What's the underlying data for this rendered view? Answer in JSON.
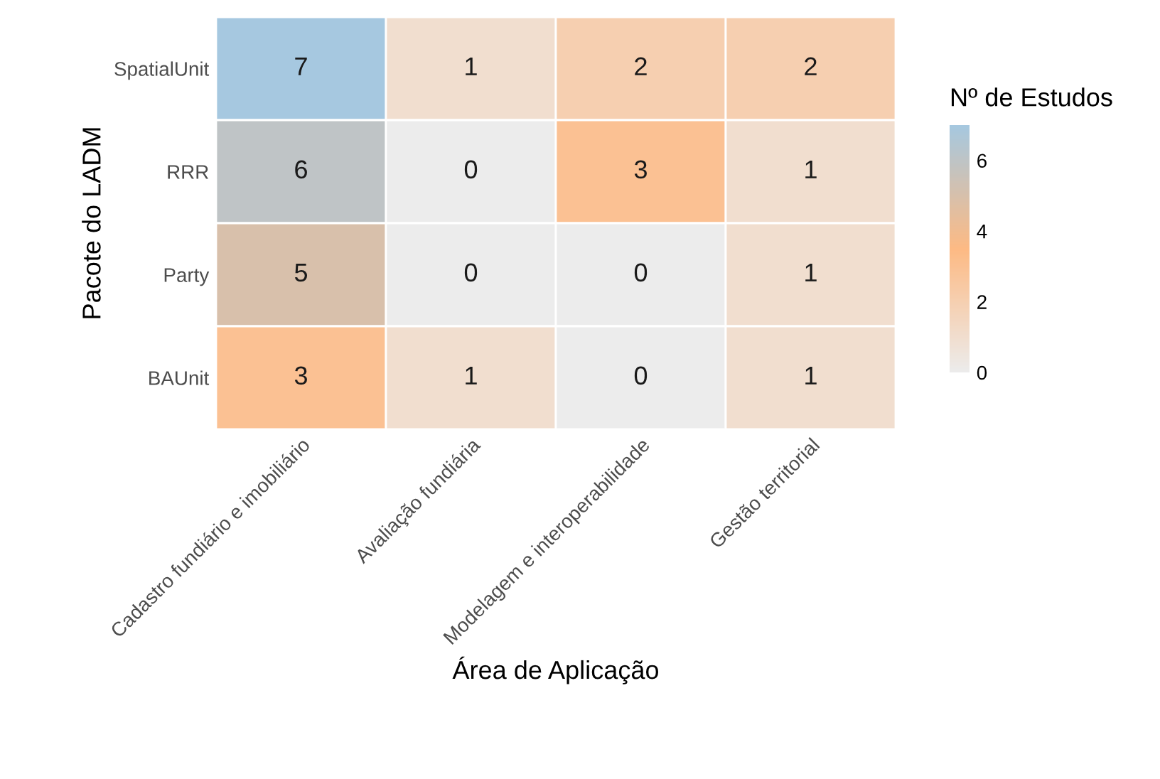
{
  "chart_data": {
    "type": "heatmap",
    "xlabel": "Área de Aplicação",
    "ylabel": "Pacote do LADM",
    "clabel": "Nº de Estudos",
    "categories": [
      "Cadastro fundiário e imobiliário",
      "Avaliação fundiária",
      "Modelagem e interoperabilidade",
      "Gestão territorial"
    ],
    "y_categories": [
      "SpatialUnit",
      "RRR",
      "Party",
      "BAUnit"
    ],
    "cells": [
      [
        7,
        1,
        2,
        2
      ],
      [
        6,
        0,
        3,
        1
      ],
      [
        5,
        0,
        0,
        1
      ],
      [
        3,
        1,
        0,
        1
      ]
    ],
    "clim": [
      0,
      7
    ],
    "cticks": [
      0,
      2,
      4,
      6
    ],
    "colors": [
      "#ececec",
      "#fdba84",
      "#a6c8e0"
    ],
    "data_labels": true
  }
}
